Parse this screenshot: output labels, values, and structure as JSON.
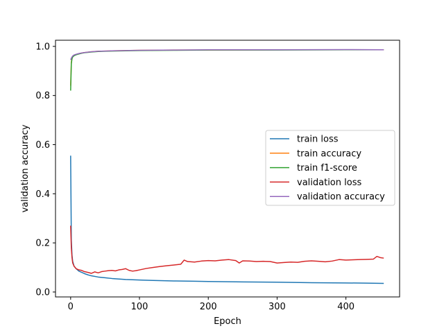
{
  "chart_data": {
    "type": "line",
    "title": "",
    "xlabel": "Epoch",
    "ylabel": "validation accuracy",
    "xlim": [
      -22,
      478
    ],
    "ylim": [
      -0.02,
      1.025
    ],
    "xticks": [
      0,
      100,
      200,
      300,
      400
    ],
    "yticks": [
      0.0,
      0.2,
      0.4,
      0.6,
      0.8,
      1.0
    ],
    "ytick_labels": [
      "0.0",
      "0.2",
      "0.4",
      "0.6",
      "0.8",
      "1.0"
    ],
    "grid": false,
    "legend_position": "center-right",
    "series": [
      {
        "name": "train loss",
        "color": "#1f77b4",
        "x": [
          0,
          1,
          2,
          3,
          5,
          8,
          12,
          16,
          20,
          25,
          30,
          40,
          50,
          60,
          80,
          100,
          120,
          150,
          180,
          200,
          250,
          300,
          350,
          400,
          430,
          455
        ],
        "y": [
          0.555,
          0.21,
          0.15,
          0.125,
          0.105,
          0.095,
          0.085,
          0.08,
          0.075,
          0.07,
          0.066,
          0.061,
          0.058,
          0.055,
          0.051,
          0.049,
          0.047,
          0.045,
          0.044,
          0.043,
          0.041,
          0.04,
          0.038,
          0.037,
          0.036,
          0.035
        ]
      },
      {
        "name": "train accuracy",
        "color": "#ff7f0e",
        "x": [
          0,
          1,
          2,
          3,
          5,
          8,
          12,
          16,
          20,
          30,
          40,
          50,
          60,
          80,
          100,
          150,
          200,
          300,
          400,
          455
        ],
        "y": [
          0.84,
          0.935,
          0.952,
          0.958,
          0.963,
          0.967,
          0.97,
          0.973,
          0.975,
          0.978,
          0.98,
          0.981,
          0.982,
          0.983,
          0.984,
          0.985,
          0.985,
          0.986,
          0.986,
          0.986
        ]
      },
      {
        "name": "train f1-score",
        "color": "#2ca02c",
        "x": [
          0,
          1,
          2,
          3,
          5,
          8,
          12,
          16,
          20,
          30,
          40,
          50,
          60,
          80,
          100,
          150,
          200,
          300,
          400,
          455
        ],
        "y": [
          0.82,
          0.93,
          0.95,
          0.957,
          0.962,
          0.966,
          0.969,
          0.972,
          0.974,
          0.977,
          0.979,
          0.98,
          0.981,
          0.982,
          0.983,
          0.984,
          0.985,
          0.985,
          0.986,
          0.986
        ]
      },
      {
        "name": "validation loss",
        "color": "#d62728",
        "x": [
          0,
          1,
          2,
          3,
          5,
          8,
          12,
          16,
          20,
          25,
          30,
          35,
          40,
          45,
          50,
          55,
          60,
          65,
          70,
          75,
          80,
          85,
          90,
          95,
          100,
          110,
          120,
          130,
          140,
          150,
          160,
          165,
          170,
          180,
          190,
          200,
          210,
          220,
          230,
          240,
          245,
          250,
          260,
          270,
          280,
          290,
          300,
          310,
          320,
          330,
          340,
          350,
          360,
          370,
          380,
          390,
          400,
          410,
          420,
          430,
          440,
          445,
          450,
          455
        ],
        "y": [
          0.27,
          0.18,
          0.14,
          0.118,
          0.105,
          0.095,
          0.09,
          0.088,
          0.083,
          0.08,
          0.076,
          0.082,
          0.078,
          0.083,
          0.085,
          0.087,
          0.088,
          0.086,
          0.09,
          0.092,
          0.095,
          0.088,
          0.085,
          0.087,
          0.09,
          0.096,
          0.1,
          0.104,
          0.107,
          0.11,
          0.113,
          0.13,
          0.124,
          0.122,
          0.126,
          0.128,
          0.127,
          0.13,
          0.132,
          0.128,
          0.118,
          0.127,
          0.126,
          0.124,
          0.125,
          0.124,
          0.118,
          0.12,
          0.122,
          0.121,
          0.125,
          0.127,
          0.125,
          0.123,
          0.126,
          0.132,
          0.13,
          0.131,
          0.132,
          0.133,
          0.134,
          0.145,
          0.14,
          0.138
        ]
      },
      {
        "name": "validation accuracy",
        "color": "#9467bd",
        "x": [
          0,
          1,
          2,
          3,
          5,
          8,
          12,
          16,
          20,
          30,
          40,
          50,
          60,
          80,
          100,
          150,
          200,
          300,
          400,
          455
        ],
        "y": [
          0.945,
          0.952,
          0.957,
          0.961,
          0.965,
          0.968,
          0.971,
          0.973,
          0.975,
          0.978,
          0.98,
          0.981,
          0.982,
          0.983,
          0.984,
          0.985,
          0.986,
          0.986,
          0.987,
          0.986
        ]
      }
    ]
  }
}
